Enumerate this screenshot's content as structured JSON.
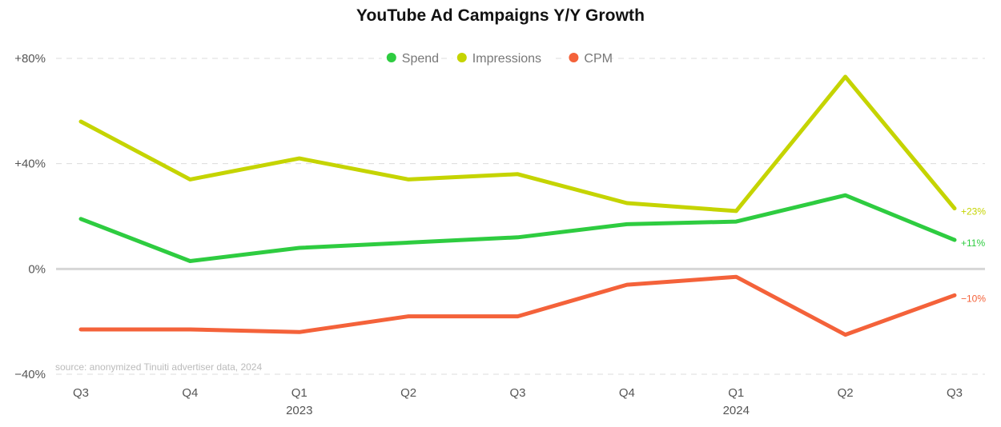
{
  "chart_data": {
    "type": "line",
    "title": "YouTube Ad Campaigns Y/Y Growth",
    "categories": [
      "Q3",
      "Q4",
      "Q1",
      "Q2",
      "Q3",
      "Q4",
      "Q1",
      "Q2",
      "Q3"
    ],
    "year_labels": [
      {
        "index": 2,
        "label": "2023"
      },
      {
        "index": 6,
        "label": "2024"
      }
    ],
    "ylim": [
      -40,
      80
    ],
    "yticks": [
      {
        "value": 80,
        "label": "+80%"
      },
      {
        "value": 40,
        "label": "+40%"
      },
      {
        "value": 0,
        "label": "0%"
      },
      {
        "value": -40,
        "label": "−40%"
      }
    ],
    "legend_position": "top-center",
    "series": [
      {
        "name": "Spend",
        "color": "#2ecc40",
        "values": [
          19,
          3,
          8,
          10,
          12,
          17,
          18,
          28,
          11
        ],
        "end_label": "+11%"
      },
      {
        "name": "Impressions",
        "color": "#c5d400",
        "values": [
          56,
          34,
          42,
          34,
          36,
          25,
          22,
          73,
          23
        ],
        "end_label": "+23%"
      },
      {
        "name": "CPM",
        "color": "#f4623a",
        "values": [
          -23,
          -23,
          -24,
          -18,
          -18,
          -6,
          -3,
          -25,
          -10
        ],
        "end_label": "−10%"
      }
    ],
    "source_note": "source: anonymized Tinuiti advertiser data, 2024"
  }
}
